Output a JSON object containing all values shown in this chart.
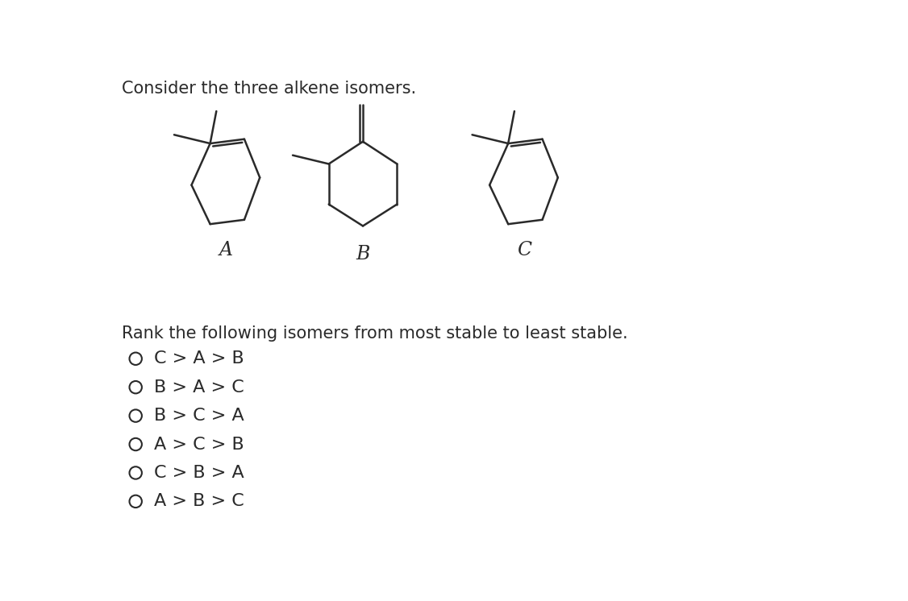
{
  "title_text": "Consider the three alkene isomers.",
  "rank_text": "Rank the following isomers from most stable to least stable.",
  "options": [
    "C > A > B",
    "B > A > C",
    "B > C > A",
    "A > C > B",
    "C > B > A",
    "A > B > C"
  ],
  "molecule_labels": [
    "A",
    "B",
    "C"
  ],
  "bg_color": "#ffffff",
  "line_color": "#2a2a2a",
  "text_color": "#2a2a2a",
  "lw": 1.8,
  "title_fontsize": 15,
  "label_fontsize": 17,
  "rank_fontsize": 15,
  "option_fontsize": 16
}
